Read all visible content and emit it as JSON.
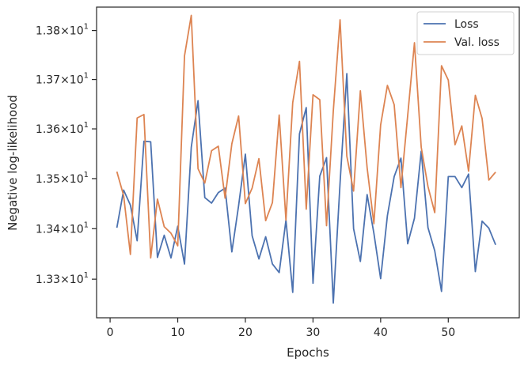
{
  "chart_data": {
    "type": "line",
    "xlabel": "Epochs",
    "ylabel": "Negative log-likelihood",
    "xlim": [
      -2,
      60.5
    ],
    "ylim": [
      13.224,
      13.848
    ],
    "xticks": [
      0,
      10,
      20,
      30,
      40,
      50
    ],
    "xtick_labels": [
      "0",
      "10",
      "20",
      "30",
      "40",
      "50"
    ],
    "yticks": [
      13.3,
      13.4,
      13.5,
      13.6,
      13.7,
      13.8
    ],
    "ytick_labels": [
      {
        "mantissa": "1.33",
        "times": "×",
        "base": "10",
        "exp": "1"
      },
      {
        "mantissa": "1.34",
        "times": "×",
        "base": "10",
        "exp": "1"
      },
      {
        "mantissa": "1.35",
        "times": "×",
        "base": "10",
        "exp": "1"
      },
      {
        "mantissa": "1.36",
        "times": "×",
        "base": "10",
        "exp": "1"
      },
      {
        "mantissa": "1.37",
        "times": "×",
        "base": "10",
        "exp": "1"
      },
      {
        "mantissa": "1.38",
        "times": "×",
        "base": "10",
        "exp": "1"
      }
    ],
    "y_scale": "log",
    "grid": false,
    "legend_position": "top-right",
    "x": [
      1,
      2,
      3,
      4,
      5,
      6,
      7,
      8,
      9,
      10,
      11,
      12,
      13,
      14,
      15,
      16,
      17,
      18,
      19,
      20,
      21,
      22,
      23,
      24,
      25,
      26,
      27,
      28,
      29,
      30,
      31,
      32,
      33,
      34,
      35,
      36,
      37,
      38,
      39,
      40,
      41,
      42,
      43,
      44,
      45,
      46,
      47,
      48,
      49,
      50,
      51,
      52,
      53,
      54,
      55,
      56,
      57
    ],
    "series": [
      {
        "name": "Loss",
        "color": "#4c72b0",
        "values": [
          13.402,
          13.477,
          13.447,
          13.376,
          13.575,
          13.574,
          13.343,
          13.387,
          13.342,
          13.405,
          13.33,
          13.563,
          13.657,
          13.462,
          13.451,
          13.472,
          13.481,
          13.354,
          13.446,
          13.549,
          13.386,
          13.34,
          13.384,
          13.33,
          13.313,
          13.417,
          13.274,
          13.59,
          13.643,
          13.292,
          13.505,
          13.542,
          13.253,
          13.491,
          13.712,
          13.4,
          13.335,
          13.468,
          13.391,
          13.301,
          13.426,
          13.504,
          13.541,
          13.37,
          13.421,
          13.555,
          13.402,
          13.356,
          13.276,
          13.504,
          13.504,
          13.482,
          13.509,
          13.315,
          13.415,
          13.401,
          13.368
        ]
      },
      {
        "name": "Val. loss",
        "color": "#dd8452",
        "values": [
          13.514,
          13.466,
          13.349,
          13.622,
          13.629,
          13.342,
          13.459,
          13.404,
          13.391,
          13.366,
          13.748,
          13.831,
          13.52,
          13.491,
          13.556,
          13.565,
          13.461,
          13.57,
          13.626,
          13.45,
          13.481,
          13.54,
          13.416,
          13.452,
          13.628,
          13.417,
          13.653,
          13.737,
          13.439,
          13.669,
          13.659,
          13.406,
          13.636,
          13.822,
          13.545,
          13.475,
          13.677,
          13.522,
          13.41,
          13.608,
          13.688,
          13.649,
          13.482,
          13.627,
          13.775,
          13.563,
          13.484,
          13.432,
          13.728,
          13.699,
          13.568,
          13.606,
          13.515,
          13.668,
          13.621,
          13.497,
          13.513
        ]
      }
    ]
  }
}
